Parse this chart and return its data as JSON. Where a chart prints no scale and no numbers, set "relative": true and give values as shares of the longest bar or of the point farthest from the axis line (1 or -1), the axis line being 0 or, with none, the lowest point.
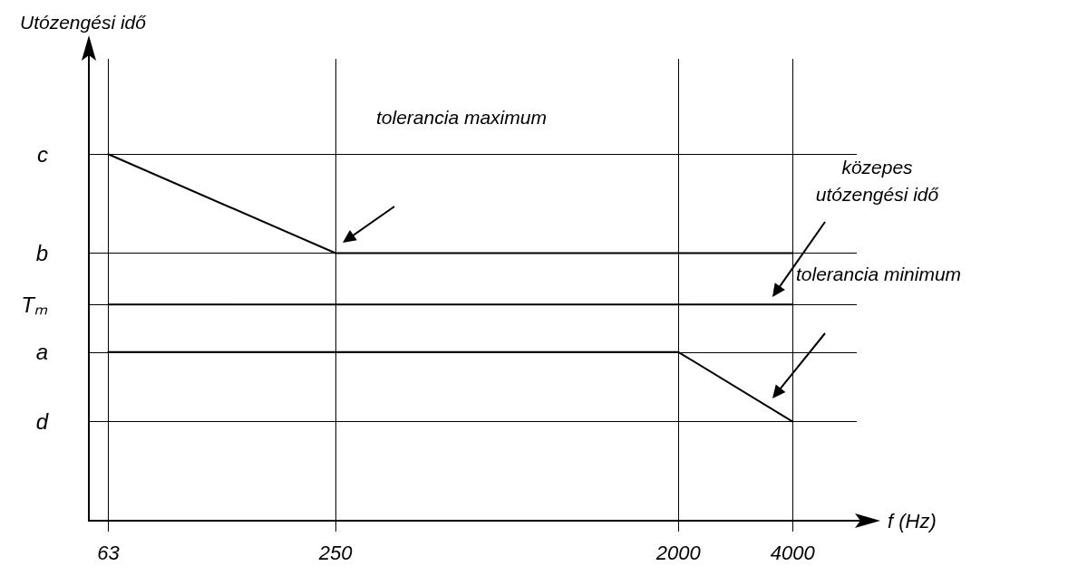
{
  "chart_data": {
    "type": "line",
    "xlabel": "f (Hz)",
    "series": [
      {
        "x": [
          63,
          250,
          4000
        ],
        "values": [
          1,
          0.73,
          0.73
        ],
        "color": "#000000"
      },
      {
        "x": [
          63,
          4000
        ],
        "values": [
          0.59,
          0.59
        ],
        "color": "#000000"
      },
      {
        "x": [
          63,
          2000,
          4000
        ],
        "values": [
          0.46,
          0.46,
          0.27
        ],
        "color": "#000000"
      }
    ],
    "relative": true,
    "log": "x",
    "xlim": [
      56,
      5900
    ],
    "xticks": [
      63,
      250,
      2000,
      4000
    ],
    "ref_lines": [
      {
        "axis": "y",
        "value": 1,
        "label": "c"
      },
      {
        "axis": "y",
        "value": 0.73,
        "label": "b"
      },
      {
        "axis": "y",
        "value": 0.59,
        "label": "Tₘ"
      },
      {
        "axis": "y",
        "value": 0.46,
        "label": "a"
      },
      {
        "axis": "y",
        "value": 0.27,
        "label": "d"
      }
    ],
    "annotations": [
      "tolerancia maximum",
      "közepes utózengési idő",
      "tolerancia minimum",
      "Utózengési idő"
    ],
    "grid": "x",
    "marker": "none",
    "line_style": "solid"
  }
}
